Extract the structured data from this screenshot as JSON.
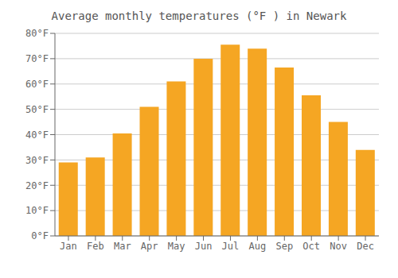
{
  "chart_data": {
    "type": "bar",
    "title": "Average monthly temperatures (°F ) in Newark",
    "categories": [
      "Jan",
      "Feb",
      "Mar",
      "Apr",
      "May",
      "Jun",
      "Jul",
      "Aug",
      "Sep",
      "Oct",
      "Nov",
      "Dec"
    ],
    "values": [
      29,
      31,
      40.5,
      51,
      61,
      70,
      75.5,
      74,
      66.5,
      55.5,
      45,
      34
    ],
    "color": "#F5A623",
    "ylim": [
      0,
      80
    ],
    "yticks": [
      {
        "value": 0,
        "label": "0°F"
      },
      {
        "value": 10,
        "label": "10°F"
      },
      {
        "value": 20,
        "label": "20°F"
      },
      {
        "value": 30,
        "label": "30°F"
      },
      {
        "value": 40,
        "label": "40°F"
      },
      {
        "value": 50,
        "label": "50°F"
      },
      {
        "value": 60,
        "label": "60°F"
      },
      {
        "value": 70,
        "label": "70°F"
      },
      {
        "value": 80,
        "label": "80°F"
      }
    ],
    "grid": true
  }
}
